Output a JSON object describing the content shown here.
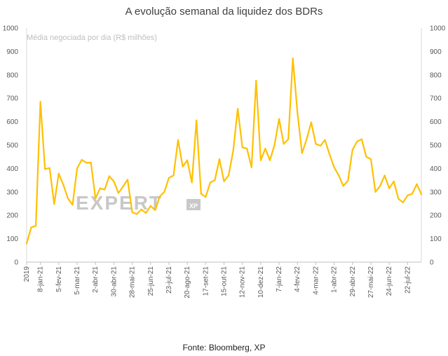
{
  "chart_data": {
    "type": "line",
    "title": "A evolução semanal da liquidez dos BDRs",
    "ylabel": "Média negociada por dia (R$ milhões)",
    "xlabel": "",
    "ylim": [
      0,
      1000
    ],
    "y_ticks": [
      0,
      100,
      200,
      300,
      400,
      500,
      600,
      700,
      800,
      900,
      1000
    ],
    "y_axis_both_sides": true,
    "grid": false,
    "legend": "none",
    "line_color": "#FFC000",
    "x_tick_labels": [
      "2019",
      "8-jan-21",
      "5-fev-21",
      "5-mar-21",
      "2-abr-21",
      "30-abr-21",
      "28-mai-21",
      "25-jun-21",
      "23-jul-21",
      "20-ago-21",
      "17-set-21",
      "15-out-21",
      "12-nov-21",
      "10-dez-21",
      "7-jan-22",
      "4-fev-22",
      "4-mar-22",
      "1-abr-22",
      "29-abr-22",
      "27-mai-22",
      "24-jun-22",
      "22-jul-22"
    ],
    "x_tick_week_index": [
      0,
      3,
      7,
      11,
      15,
      19,
      23,
      27,
      31,
      35,
      39,
      43,
      47,
      51,
      55,
      59,
      63,
      67,
      71,
      75,
      79,
      83
    ],
    "values": [
      80,
      148,
      155,
      685,
      397,
      402,
      248,
      378,
      330,
      272,
      245,
      400,
      437,
      425,
      425,
      272,
      315,
      310,
      367,
      345,
      295,
      323,
      352,
      213,
      205,
      225,
      210,
      240,
      222,
      280,
      300,
      360,
      370,
      522,
      408,
      435,
      340,
      605,
      292,
      278,
      340,
      350,
      440,
      345,
      370,
      475,
      655,
      490,
      485,
      405,
      775,
      435,
      485,
      435,
      500,
      612,
      505,
      525,
      870,
      640,
      465,
      525,
      597,
      505,
      497,
      522,
      460,
      405,
      370,
      325,
      348,
      480,
      515,
      525,
      450,
      440,
      300,
      325,
      370,
      315,
      345,
      270,
      255,
      285,
      292,
      333,
      290
    ]
  },
  "watermark": {
    "brand": "EXPERT",
    "sub": "XP",
    "color": "#c8c8c8"
  },
  "source": "Fonte: Bloomberg, XP"
}
